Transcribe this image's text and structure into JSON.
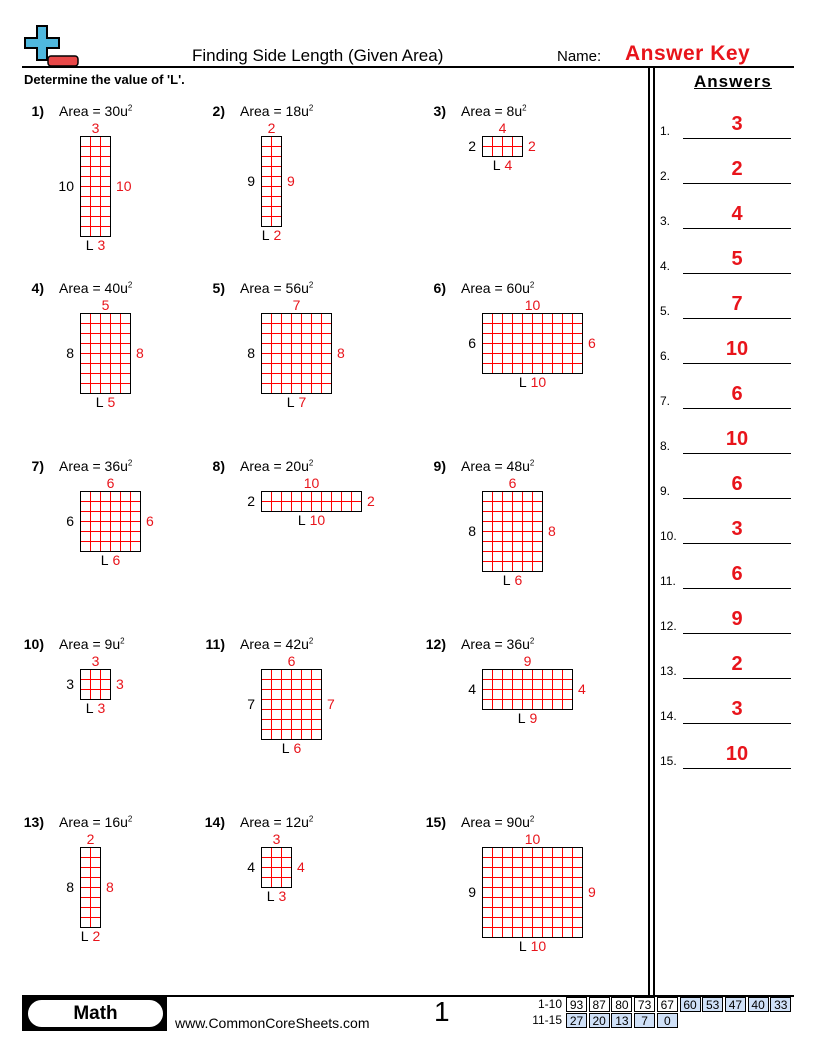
{
  "header": {
    "title": "Finding Side Length (Given Area)",
    "name_label": "Name:",
    "answer_key": "Answer Key",
    "logo_icon": "plus-minus-logo-icon"
  },
  "instructions": "Determine the value of 'L'.",
  "area_prefix": "Area = ",
  "area_unit": "u",
  "area_exp": "2",
  "unknown_label": "L",
  "problems": [
    {
      "num": "1)",
      "area": "30",
      "given": "10",
      "answer": "3"
    },
    {
      "num": "2)",
      "area": "18",
      "given": "9",
      "answer": "2"
    },
    {
      "num": "3)",
      "area": "8",
      "given": "2",
      "answer": "4"
    },
    {
      "num": "4)",
      "area": "40",
      "given": "8",
      "answer": "5"
    },
    {
      "num": "5)",
      "area": "56",
      "given": "8",
      "answer": "7"
    },
    {
      "num": "6)",
      "area": "60",
      "given": "6",
      "answer": "10"
    },
    {
      "num": "7)",
      "area": "36",
      "given": "6",
      "answer": "6"
    },
    {
      "num": "8)",
      "area": "20",
      "given": "2",
      "answer": "10"
    },
    {
      "num": "9)",
      "area": "48",
      "given": "8",
      "answer": "6"
    },
    {
      "num": "10)",
      "area": "9",
      "given": "3",
      "answer": "3"
    },
    {
      "num": "11)",
      "area": "42",
      "given": "7",
      "answer": "6"
    },
    {
      "num": "12)",
      "area": "36",
      "given": "4",
      "answer": "9"
    },
    {
      "num": "13)",
      "area": "16",
      "given": "8",
      "answer": "2"
    },
    {
      "num": "14)",
      "area": "12",
      "given": "4",
      "answer": "3"
    },
    {
      "num": "15)",
      "area": "90",
      "given": "9",
      "answer": "10"
    }
  ],
  "answers": {
    "title": "Answers",
    "items": [
      {
        "num": "1.",
        "value": "3"
      },
      {
        "num": "2.",
        "value": "2"
      },
      {
        "num": "3.",
        "value": "4"
      },
      {
        "num": "4.",
        "value": "5"
      },
      {
        "num": "5.",
        "value": "7"
      },
      {
        "num": "6.",
        "value": "10"
      },
      {
        "num": "7.",
        "value": "6"
      },
      {
        "num": "8.",
        "value": "10"
      },
      {
        "num": "9.",
        "value": "6"
      },
      {
        "num": "10.",
        "value": "3"
      },
      {
        "num": "11.",
        "value": "6"
      },
      {
        "num": "12.",
        "value": "9"
      },
      {
        "num": "13.",
        "value": "2"
      },
      {
        "num": "14.",
        "value": "3"
      },
      {
        "num": "15.",
        "value": "10"
      }
    ]
  },
  "footer": {
    "subject": "Math",
    "site": "www.CommonCoreSheets.com",
    "page": "1",
    "score_rows": [
      {
        "label": "1-10",
        "cells": [
          {
            "v": "93",
            "blue": false
          },
          {
            "v": "87",
            "blue": false
          },
          {
            "v": "80",
            "blue": false
          },
          {
            "v": "73",
            "blue": false
          },
          {
            "v": "67",
            "blue": false
          },
          {
            "v": "60",
            "blue": true
          },
          {
            "v": "53",
            "blue": true
          },
          {
            "v": "47",
            "blue": true
          },
          {
            "v": "40",
            "blue": true
          },
          {
            "v": "33",
            "blue": true
          }
        ]
      },
      {
        "label": "11-15",
        "cells": [
          {
            "v": "27",
            "blue": true
          },
          {
            "v": "20",
            "blue": true
          },
          {
            "v": "13",
            "blue": true
          },
          {
            "v": "7",
            "blue": true
          },
          {
            "v": "0",
            "blue": true
          }
        ]
      }
    ]
  },
  "colors": {
    "answer_red": "#e8141b",
    "score_blue": "#cfe0f7",
    "logo_blue": "#4fb8de",
    "logo_red": "#e84848"
  }
}
